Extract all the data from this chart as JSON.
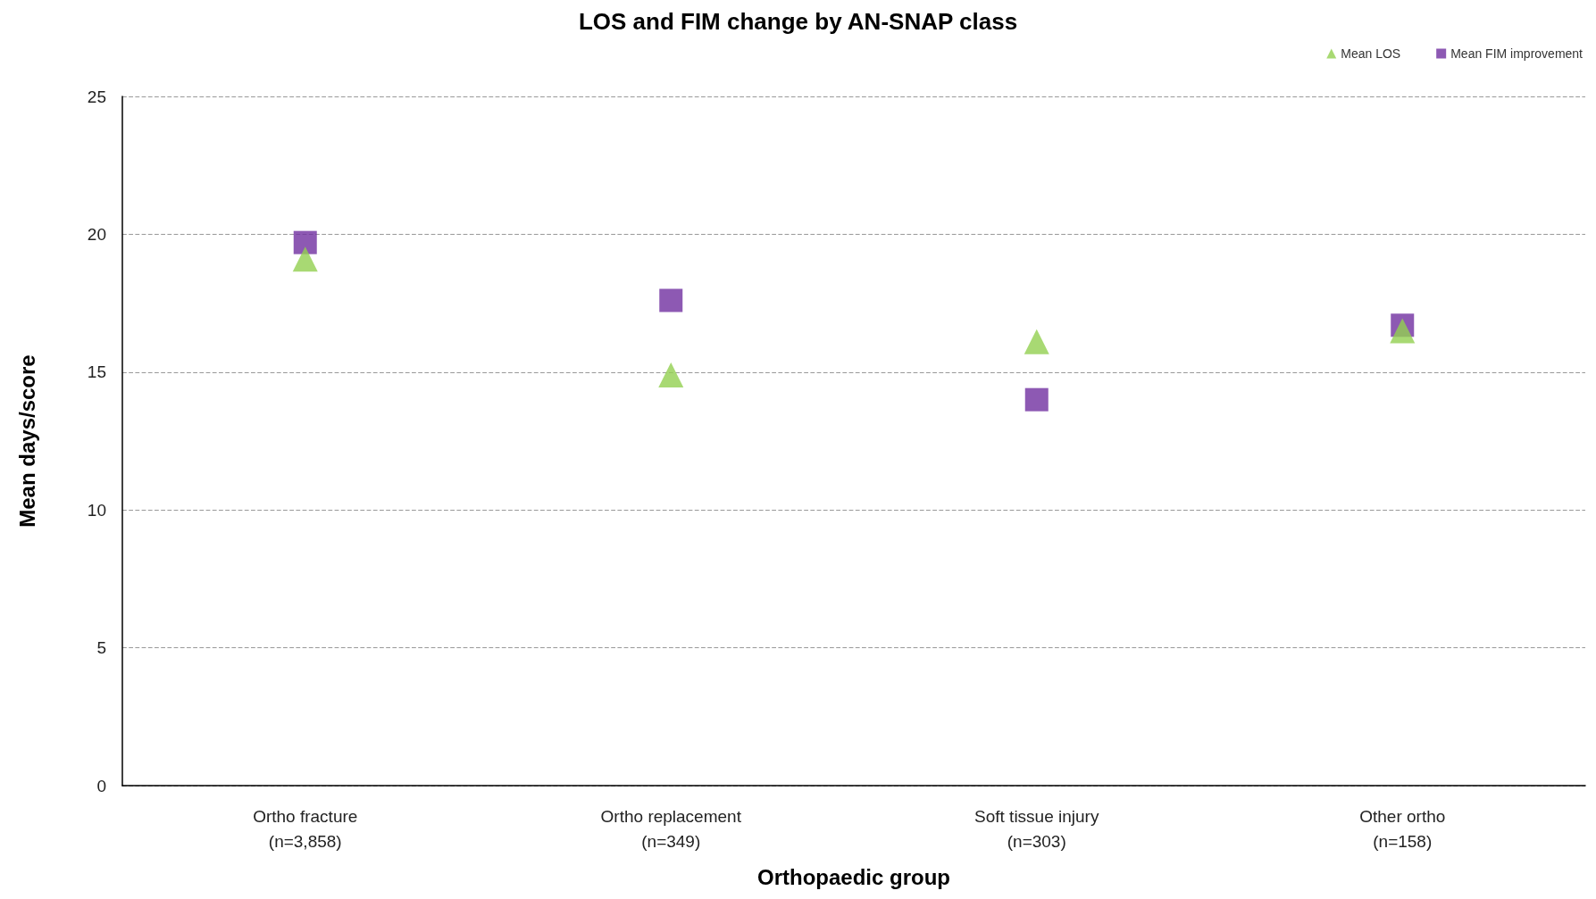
{
  "chart_data": {
    "type": "scatter",
    "title": "LOS and FIM change by AN-SNAP class",
    "xlabel": "Orthopaedic group",
    "ylabel": "Mean days/score",
    "categories": [
      "Ortho fracture\n(n=3,858)",
      "Ortho replacement\n(n=349)",
      "Soft tissue injury\n(n=303)",
      "Other ortho\n(n=158)"
    ],
    "series": [
      {
        "name": "Mean LOS",
        "color": "#92d050",
        "marker": "triangle",
        "values": [
          19.1,
          14.9,
          16.1,
          16.5
        ]
      },
      {
        "name": "Mean FIM improvement",
        "color": "#7030a0",
        "marker": "square",
        "values": [
          19.7,
          17.6,
          14.0,
          16.7
        ]
      }
    ],
    "ylim": [
      0,
      25
    ],
    "yticks": [
      0,
      5,
      10,
      15,
      20,
      25
    ],
    "grid": "y",
    "legend": "top right"
  }
}
